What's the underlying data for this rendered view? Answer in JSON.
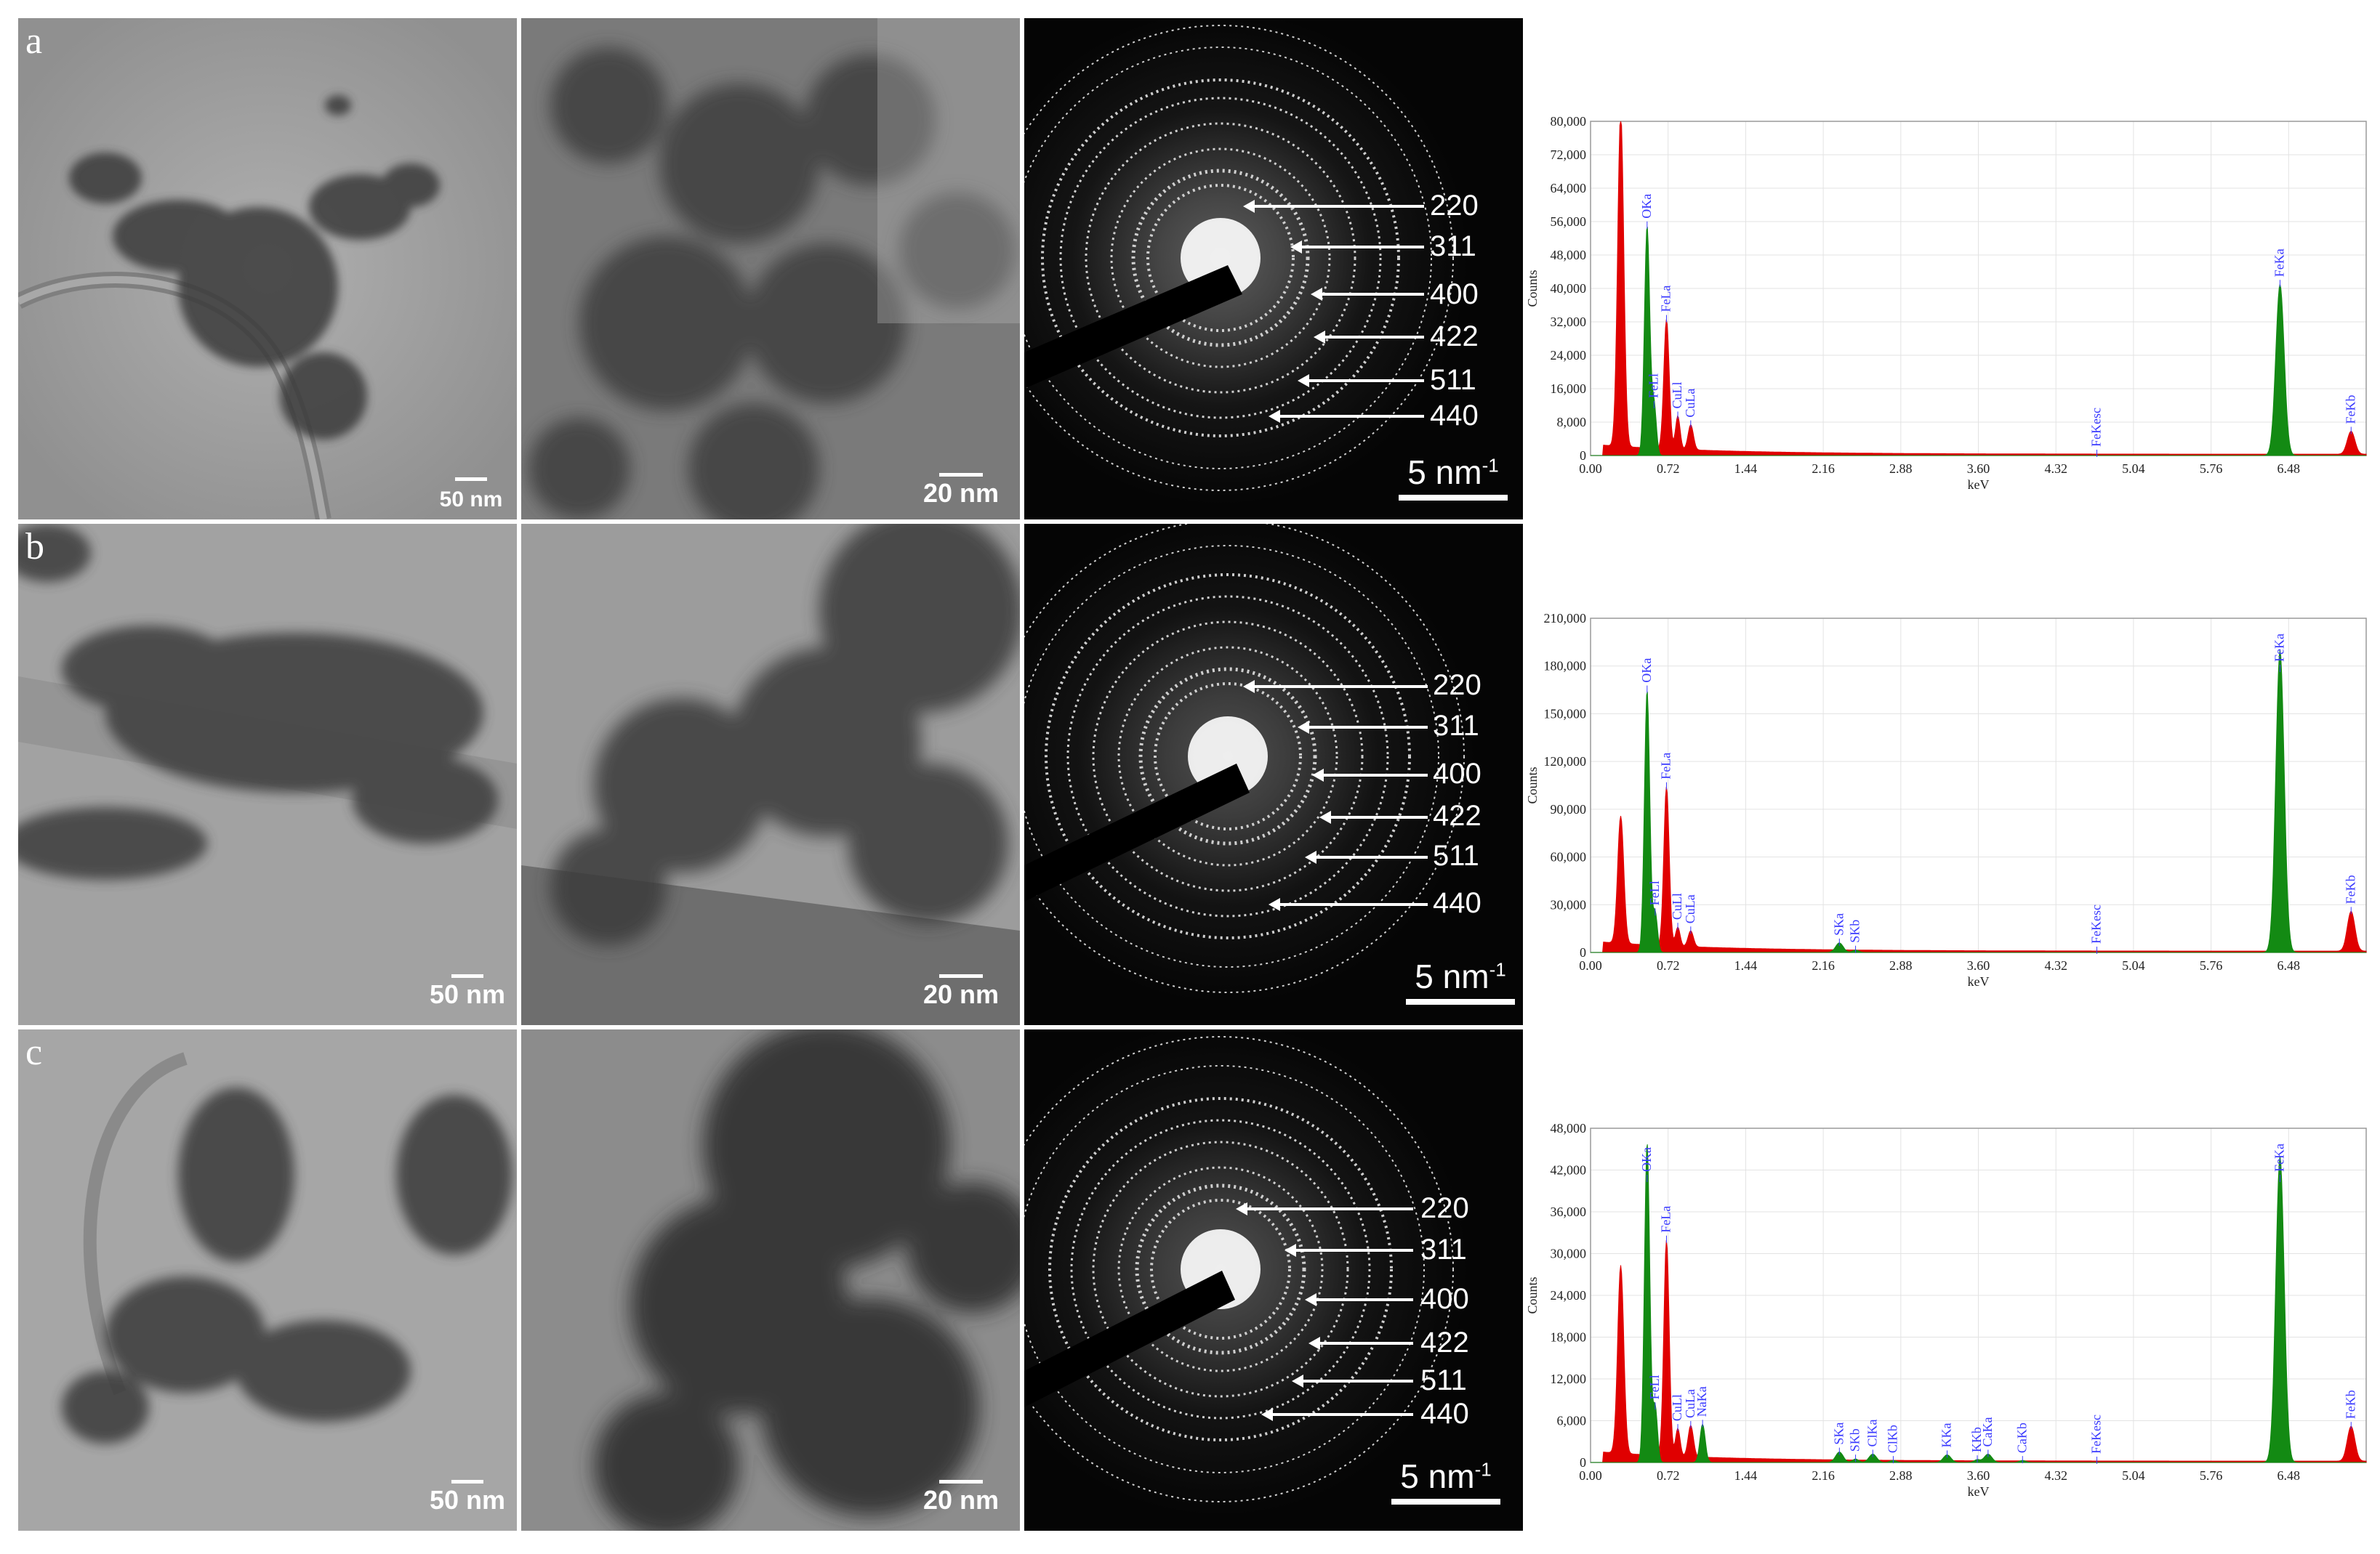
{
  "panels": [
    {
      "letter": "a",
      "scale_overview": "50 nm",
      "scale_detail": "20 nm",
      "saed_scale": "5 nm",
      "saed_scale_exp": "-1",
      "rings": [
        "220",
        "311",
        "400",
        "422",
        "511",
        "440"
      ]
    },
    {
      "letter": "b",
      "scale_overview": "50 nm",
      "scale_detail": "20 nm",
      "saed_scale": "5 nm",
      "saed_scale_exp": "-1",
      "rings": [
        "220",
        "311",
        "400",
        "422",
        "511",
        "440"
      ]
    },
    {
      "letter": "c",
      "scale_overview": "50 nm",
      "scale_detail": "20 nm",
      "saed_scale": "5 nm",
      "saed_scale_exp": "-1",
      "rings": [
        "220",
        "311",
        "400",
        "422",
        "511",
        "440"
      ]
    }
  ],
  "colors": {
    "eds_fill_primary": "#e00000",
    "eds_fill_secondary": "#138a13",
    "eds_label": "#3a3aff",
    "tem_background": "#9a9a9a",
    "saed_background": "#050505"
  },
  "chart_data": [
    {
      "type": "area",
      "xlabel": "keV",
      "ylabel": "Counts",
      "xlim": [
        0,
        7.2
      ],
      "ylim": [
        0,
        80000
      ],
      "x_ticks": [
        "0.00",
        "0.72",
        "1.44",
        "2.16",
        "2.88",
        "3.60",
        "4.32",
        "5.04",
        "5.76",
        "6.48"
      ],
      "y_ticks": [
        "0",
        "8,000",
        "16,000",
        "24,000",
        "32,000",
        "40,000",
        "48,000",
        "56,000",
        "64,000",
        "72,000",
        "80,000"
      ],
      "y_tick_values": [
        0,
        8000,
        16000,
        24000,
        32000,
        40000,
        48000,
        56000,
        64000,
        72000,
        80000
      ],
      "peaks": [
        {
          "x": 0.28,
          "y": 80000,
          "w": 0.04,
          "series": "red",
          "label": ""
        },
        {
          "x": 0.525,
          "y": 55000,
          "w": 0.035,
          "series": "green",
          "label": "OKa"
        },
        {
          "x": 0.59,
          "y": 12000,
          "w": 0.03,
          "series": "green",
          "label": "FeLl"
        },
        {
          "x": 0.705,
          "y": 31000,
          "w": 0.035,
          "series": "red",
          "label": "FeLa"
        },
        {
          "x": 0.81,
          "y": 8000,
          "w": 0.03,
          "series": "red",
          "label": "CuLl"
        },
        {
          "x": 0.93,
          "y": 6000,
          "w": 0.035,
          "series": "red",
          "label": "CuLa"
        },
        {
          "x": 4.7,
          "y": 0,
          "w": 0.05,
          "series": "red",
          "label": "FeKesc"
        },
        {
          "x": 6.4,
          "y": 41000,
          "w": 0.055,
          "series": "green",
          "label": "FeKa"
        },
        {
          "x": 7.06,
          "y": 5500,
          "w": 0.05,
          "series": "red",
          "label": "FeKb"
        }
      ]
    },
    {
      "type": "area",
      "xlabel": "keV",
      "ylabel": "Counts",
      "xlim": [
        0,
        7.2
      ],
      "ylim": [
        0,
        210000
      ],
      "x_ticks": [
        "0.00",
        "0.72",
        "1.44",
        "2.16",
        "2.88",
        "3.60",
        "4.32",
        "5.04",
        "5.76",
        "6.48"
      ],
      "y_ticks": [
        "0",
        "30,000",
        "60,000",
        "90,000",
        "120,000",
        "150,000",
        "180,000",
        "210,000"
      ],
      "y_tick_values": [
        0,
        30000,
        60000,
        90000,
        120000,
        150000,
        180000,
        210000
      ],
      "peaks": [
        {
          "x": 0.28,
          "y": 80000,
          "w": 0.04,
          "series": "red",
          "label": ""
        },
        {
          "x": 0.525,
          "y": 165000,
          "w": 0.035,
          "series": "green",
          "label": "OKa"
        },
        {
          "x": 0.6,
          "y": 25000,
          "w": 0.03,
          "series": "green",
          "label": "FeLl"
        },
        {
          "x": 0.705,
          "y": 100000,
          "w": 0.035,
          "series": "red",
          "label": "FeLa"
        },
        {
          "x": 0.81,
          "y": 12000,
          "w": 0.03,
          "series": "red",
          "label": "CuLl"
        },
        {
          "x": 0.93,
          "y": 10000,
          "w": 0.035,
          "series": "red",
          "label": "CuLa"
        },
        {
          "x": 2.31,
          "y": 6000,
          "w": 0.05,
          "series": "green",
          "label": "SKa"
        },
        {
          "x": 2.46,
          "y": 1500,
          "w": 0.04,
          "series": "green",
          "label": "SKb"
        },
        {
          "x": 4.7,
          "y": 0,
          "w": 0.05,
          "series": "red",
          "label": "FeKesc"
        },
        {
          "x": 6.4,
          "y": 190000,
          "w": 0.055,
          "series": "green",
          "label": "FeKa"
        },
        {
          "x": 7.06,
          "y": 25000,
          "w": 0.05,
          "series": "red",
          "label": "FeKb"
        }
      ]
    },
    {
      "type": "area",
      "xlabel": "keV",
      "ylabel": "Counts",
      "xlim": [
        0,
        7.2
      ],
      "ylim": [
        0,
        48000
      ],
      "x_ticks": [
        "0.00",
        "0.72",
        "1.44",
        "2.16",
        "2.88",
        "3.60",
        "4.32",
        "5.04",
        "5.76",
        "6.48"
      ],
      "y_ticks": [
        "0",
        "6,000",
        "12,000",
        "18,000",
        "24,000",
        "30,000",
        "36,000",
        "42,000",
        "48,000"
      ],
      "y_tick_values": [
        0,
        6000,
        12000,
        18000,
        24000,
        30000,
        36000,
        42000,
        48000
      ],
      "peaks": [
        {
          "x": 0.28,
          "y": 27000,
          "w": 0.04,
          "series": "red",
          "label": ""
        },
        {
          "x": 0.525,
          "y": 46000,
          "w": 0.035,
          "series": "green",
          "label": "OKa"
        },
        {
          "x": 0.6,
          "y": 8000,
          "w": 0.03,
          "series": "green",
          "label": "FeLl"
        },
        {
          "x": 0.705,
          "y": 31000,
          "w": 0.035,
          "series": "red",
          "label": "FeLa"
        },
        {
          "x": 0.81,
          "y": 4000,
          "w": 0.03,
          "series": "red",
          "label": "CuLl"
        },
        {
          "x": 0.93,
          "y": 4500,
          "w": 0.035,
          "series": "red",
          "label": "CuLa"
        },
        {
          "x": 1.04,
          "y": 5500,
          "w": 0.035,
          "series": "green",
          "label": "NaKa"
        },
        {
          "x": 2.31,
          "y": 1500,
          "w": 0.05,
          "series": "green",
          "label": "SKa"
        },
        {
          "x": 2.46,
          "y": 500,
          "w": 0.04,
          "series": "green",
          "label": "SKb"
        },
        {
          "x": 2.62,
          "y": 1200,
          "w": 0.05,
          "series": "green",
          "label": "ClKa"
        },
        {
          "x": 2.81,
          "y": 300,
          "w": 0.04,
          "series": "green",
          "label": "ClKb"
        },
        {
          "x": 3.31,
          "y": 1100,
          "w": 0.05,
          "series": "green",
          "label": "KKa"
        },
        {
          "x": 3.59,
          "y": 400,
          "w": 0.04,
          "series": "green",
          "label": "KKb"
        },
        {
          "x": 3.69,
          "y": 1200,
          "w": 0.05,
          "series": "green",
          "label": "CaKa"
        },
        {
          "x": 4.01,
          "y": 300,
          "w": 0.04,
          "series": "green",
          "label": "CaKb"
        },
        {
          "x": 4.7,
          "y": 0,
          "w": 0.05,
          "series": "red",
          "label": "FeKesc"
        },
        {
          "x": 6.4,
          "y": 44000,
          "w": 0.055,
          "series": "green",
          "label": "FeKa"
        },
        {
          "x": 7.06,
          "y": 5000,
          "w": 0.05,
          "series": "red",
          "label": "FeKb"
        }
      ]
    }
  ]
}
